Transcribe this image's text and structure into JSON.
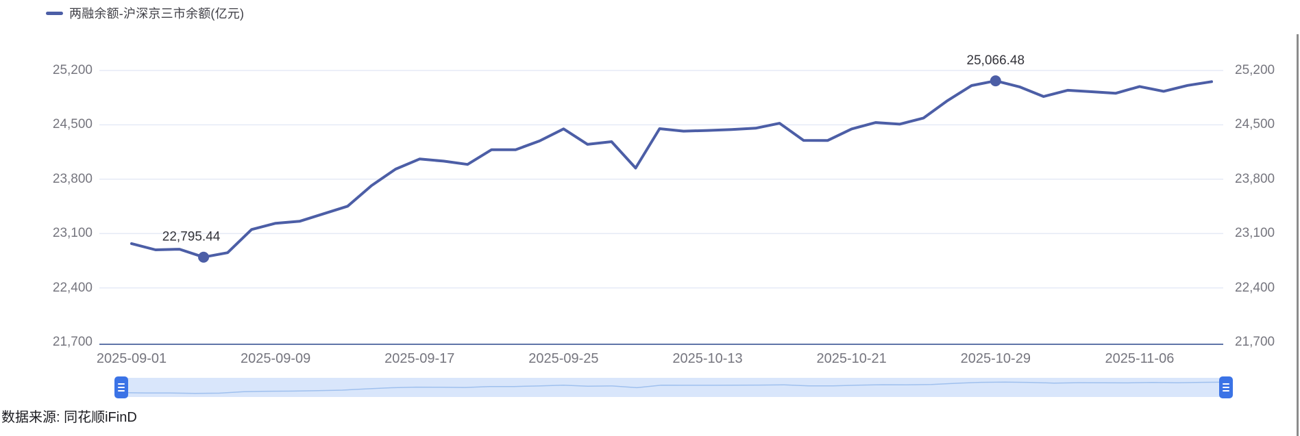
{
  "legend": {
    "label": "两融余额-沪深京三市余额(亿元)"
  },
  "source_label": "数据来源: 同花顺iFinD",
  "colors": {
    "line": "#4c5ea6",
    "grid": "#e5eaf6",
    "axis": "#5f74a8",
    "tick_text": "#75757e",
    "data_label_text": "#33333a",
    "slider_track": "#d9e6fb",
    "slider_line": "#9fc0ee",
    "slider_handle": "#3b73e6"
  },
  "chart_data": {
    "type": "line",
    "title": "两融余额-沪深京三市余额(亿元)",
    "xlabel": "",
    "ylabel": "",
    "ylim": [
      21700,
      25200
    ],
    "y_tick_step": 700,
    "grid": true,
    "legend_position": "top-left",
    "y_tick_labels": [
      "25,200",
      "24,500",
      "23,800",
      "23,100",
      "22,400",
      "21,700"
    ],
    "y_tick_values": [
      25200,
      24500,
      23800,
      23100,
      22400,
      21700
    ],
    "x": [
      "2025-09-01",
      "2025-09-02",
      "2025-09-03",
      "2025-09-04",
      "2025-09-05",
      "2025-09-08",
      "2025-09-09",
      "2025-09-10",
      "2025-09-11",
      "2025-09-12",
      "2025-09-15",
      "2025-09-16",
      "2025-09-17",
      "2025-09-18",
      "2025-09-19",
      "2025-09-22",
      "2025-09-23",
      "2025-09-24",
      "2025-09-25",
      "2025-09-26",
      "2025-09-29",
      "2025-09-30",
      "2025-10-09",
      "2025-10-10",
      "2025-10-13",
      "2025-10-14",
      "2025-10-15",
      "2025-10-16",
      "2025-10-17",
      "2025-10-20",
      "2025-10-21",
      "2025-10-22",
      "2025-10-23",
      "2025-10-24",
      "2025-10-27",
      "2025-10-28",
      "2025-10-29",
      "2025-10-30",
      "2025-10-31",
      "2025-11-03",
      "2025-11-04",
      "2025-11-05",
      "2025-11-06",
      "2025-11-07",
      "2025-11-10",
      "2025-11-11"
    ],
    "values": [
      22970,
      22890,
      22898,
      22795.44,
      22853,
      23152,
      23232,
      23258,
      23355,
      23452,
      23718,
      23930,
      24060,
      24033,
      23990,
      24180,
      24180,
      24293,
      24448,
      24249,
      24283,
      23944,
      24451,
      24419,
      24428,
      24440,
      24457,
      24520,
      24300,
      24298,
      24447,
      24530,
      24509,
      24588,
      24813,
      25006,
      25066.48,
      24989,
      24865,
      24945,
      24927,
      24906,
      24994,
      24932,
      25008,
      25056
    ],
    "x_ticks": [
      {
        "index": 0,
        "label": "2025-09-01"
      },
      {
        "index": 6,
        "label": "2025-09-09"
      },
      {
        "index": 12,
        "label": "2025-09-17"
      },
      {
        "index": 18,
        "label": "2025-09-25"
      },
      {
        "index": 24,
        "label": "2025-10-13"
      },
      {
        "index": 30,
        "label": "2025-10-21"
      },
      {
        "index": 36,
        "label": "2025-10-29"
      },
      {
        "index": 42,
        "label": "2025-11-06"
      }
    ],
    "annotations": [
      {
        "index": 3,
        "label": "22,795.44",
        "dx": -18
      },
      {
        "index": 36,
        "label": "25,066.48",
        "dx": 0
      }
    ]
  },
  "datazoom": {
    "left_handle": "≡",
    "right_handle": "≡"
  }
}
